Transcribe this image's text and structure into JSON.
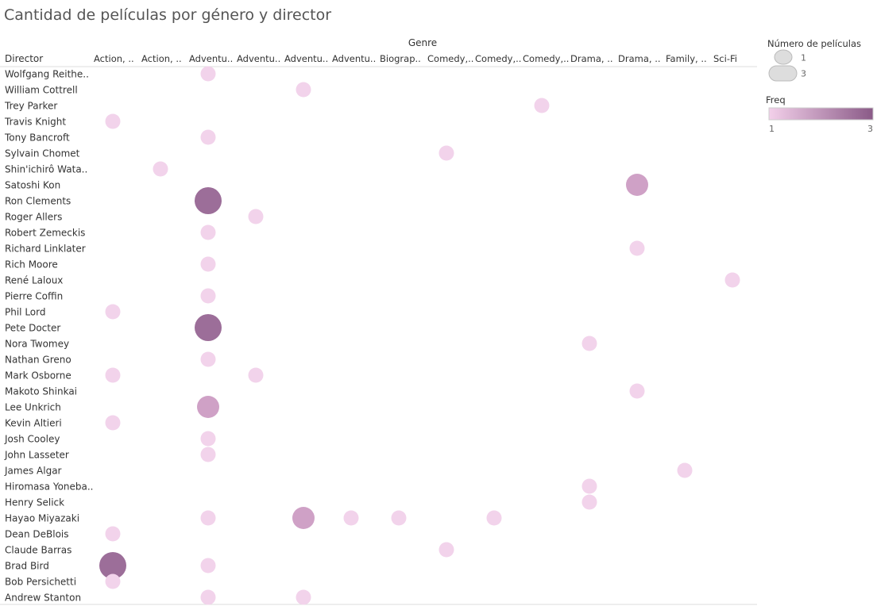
{
  "title": "Cantidad de películas por género y director",
  "chart_data": {
    "type": "scatter",
    "column_header": "Genre",
    "row_header": "Director",
    "genres": [
      "Action, ..",
      "Action, ..",
      "Adventu..",
      "Adventu..",
      "Adventu..",
      "Adventu..",
      "Biograp..",
      "Comedy,..",
      "Comedy,..",
      "Comedy,..",
      "Drama, ..",
      "Drama, ..",
      "Family, ..",
      "Sci-Fi"
    ],
    "directors": [
      "Wolfgang Reithe..",
      "William Cottrell",
      "Trey Parker",
      "Travis Knight",
      "Tony Bancroft",
      "Sylvain Chomet",
      "Shin'ichirô Wata..",
      "Satoshi Kon",
      "Ron Clements",
      "Roger Allers",
      "Robert Zemeckis",
      "Richard Linklater",
      "Rich Moore",
      "René Laloux",
      "Pierre Coffin",
      "Phil Lord",
      "Pete Docter",
      "Nora Twomey",
      "Nathan Greno",
      "Mark Osborne",
      "Makoto Shinkai",
      "Lee Unkrich",
      "Kevin Altieri",
      "Josh Cooley",
      "John Lasseter",
      "James Algar",
      "Hiromasa Yoneba..",
      "Henry Selick",
      "Hayao Miyazaki",
      "Dean DeBlois",
      "Claude Barras",
      "Brad Bird",
      "Bob Persichetti",
      "Andrew Stanton"
    ],
    "points": [
      {
        "director": 0,
        "genre": 2,
        "count": 1
      },
      {
        "director": 1,
        "genre": 4,
        "count": 1
      },
      {
        "director": 2,
        "genre": 9,
        "count": 1
      },
      {
        "director": 3,
        "genre": 0,
        "count": 1
      },
      {
        "director": 4,
        "genre": 2,
        "count": 1
      },
      {
        "director": 5,
        "genre": 7,
        "count": 1
      },
      {
        "director": 6,
        "genre": 1,
        "count": 1
      },
      {
        "director": 7,
        "genre": 11,
        "count": 2
      },
      {
        "director": 8,
        "genre": 2,
        "count": 3
      },
      {
        "director": 9,
        "genre": 3,
        "count": 1
      },
      {
        "director": 10,
        "genre": 2,
        "count": 1
      },
      {
        "director": 11,
        "genre": 11,
        "count": 1
      },
      {
        "director": 12,
        "genre": 2,
        "count": 1
      },
      {
        "director": 13,
        "genre": 13,
        "count": 1
      },
      {
        "director": 14,
        "genre": 2,
        "count": 1
      },
      {
        "director": 15,
        "genre": 0,
        "count": 1
      },
      {
        "director": 16,
        "genre": 2,
        "count": 3
      },
      {
        "director": 17,
        "genre": 10,
        "count": 1
      },
      {
        "director": 18,
        "genre": 2,
        "count": 1
      },
      {
        "director": 19,
        "genre": 0,
        "count": 1
      },
      {
        "director": 19,
        "genre": 3,
        "count": 1
      },
      {
        "director": 20,
        "genre": 11,
        "count": 1
      },
      {
        "director": 21,
        "genre": 2,
        "count": 2
      },
      {
        "director": 22,
        "genre": 0,
        "count": 1
      },
      {
        "director": 23,
        "genre": 2,
        "count": 1
      },
      {
        "director": 24,
        "genre": 2,
        "count": 1
      },
      {
        "director": 25,
        "genre": 12,
        "count": 1
      },
      {
        "director": 26,
        "genre": 10,
        "count": 1
      },
      {
        "director": 27,
        "genre": 10,
        "count": 1
      },
      {
        "director": 28,
        "genre": 2,
        "count": 1
      },
      {
        "director": 28,
        "genre": 4,
        "count": 2
      },
      {
        "director": 28,
        "genre": 5,
        "count": 1
      },
      {
        "director": 28,
        "genre": 6,
        "count": 1
      },
      {
        "director": 28,
        "genre": 8,
        "count": 1
      },
      {
        "director": 29,
        "genre": 0,
        "count": 1
      },
      {
        "director": 30,
        "genre": 7,
        "count": 1
      },
      {
        "director": 31,
        "genre": 0,
        "count": 3
      },
      {
        "director": 31,
        "genre": 2,
        "count": 1
      },
      {
        "director": 32,
        "genre": 0,
        "count": 1
      },
      {
        "director": 33,
        "genre": 2,
        "count": 1
      },
      {
        "director": 33,
        "genre": 4,
        "count": 1
      }
    ],
    "size_legend": {
      "title": "Número de películas",
      "min_label": "1",
      "max_label": "3"
    },
    "color_legend": {
      "title": "Freq",
      "min_label": "1",
      "max_label": "3",
      "min_color": "#f3d0ea",
      "max_color": "#8a5a87"
    },
    "colors": {
      "count_1": "#f2d3eb",
      "count_2": "#cfa1c6",
      "count_3": "#9c6e99",
      "grid": "#dddddd",
      "header_text": "#333333"
    }
  }
}
